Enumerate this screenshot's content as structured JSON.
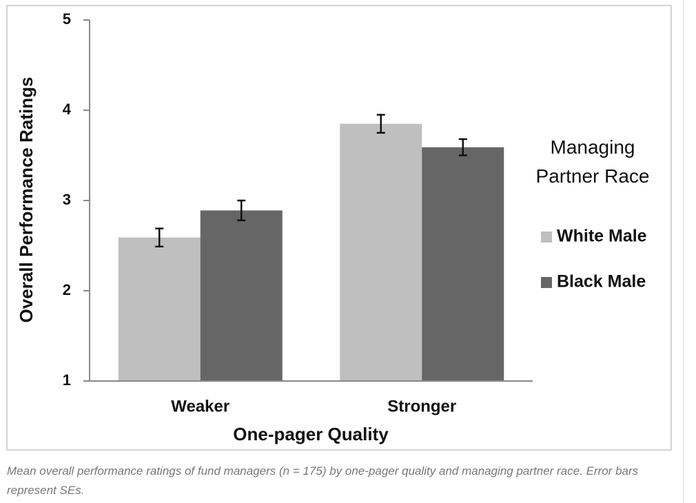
{
  "chart_data": {
    "type": "bar",
    "y_label": "Overall Performance Ratings",
    "x_label": "One-pager Quality",
    "categories": [
      "Weaker",
      "Stronger"
    ],
    "series": [
      {
        "name": "White Male",
        "color": "#bfbfbf",
        "values": [
          2.59,
          3.85
        ],
        "errors": [
          0.1,
          0.1
        ]
      },
      {
        "name": "Black Male",
        "color": "#666666",
        "values": [
          2.89,
          3.59
        ],
        "errors": [
          0.11,
          0.09
        ]
      }
    ],
    "legend_title": "Managing Partner Race",
    "ylim": [
      1,
      5
    ],
    "yticks": [
      1,
      2,
      3,
      4,
      5
    ],
    "grid": false
  },
  "caption": "Mean overall performance ratings of fund managers (n = 175) by one-pager quality and managing partner race. Error bars represent SEs."
}
